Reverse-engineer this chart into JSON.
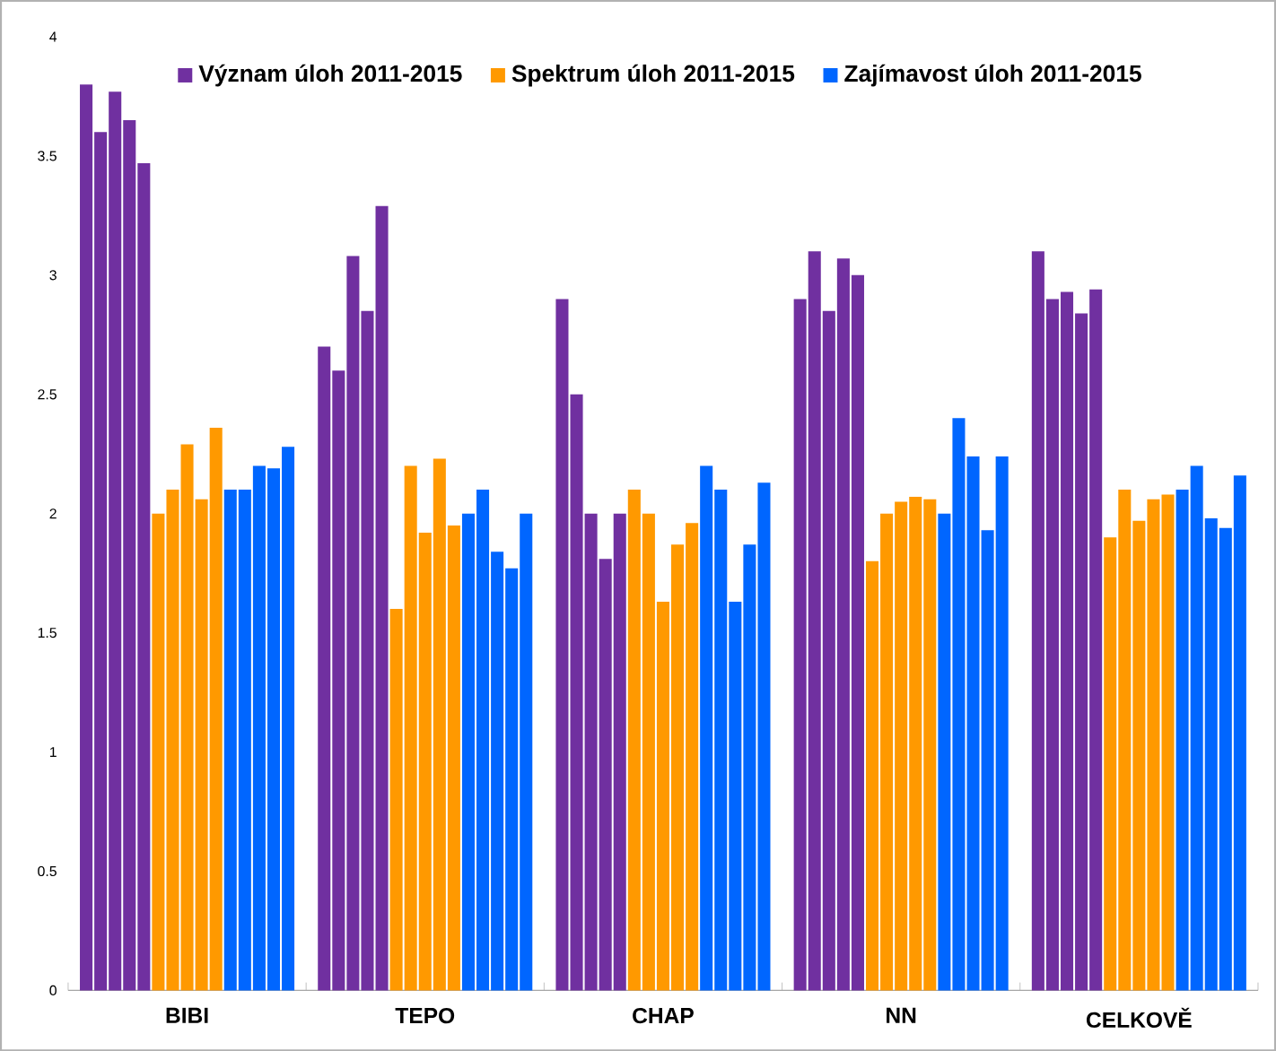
{
  "chart_data": {
    "type": "bar",
    "categories": [
      "BIBI",
      "TEPO",
      "CHAP",
      "NN",
      "CELKOVĚ"
    ],
    "ylim": [
      0,
      4
    ],
    "yticks": [
      0,
      0.5,
      1,
      1.5,
      2,
      2.5,
      3,
      3.5,
      4
    ],
    "legend": "top",
    "series": [
      {
        "name": "Význam úloh 2011-2015",
        "color": "#7030a0",
        "values": [
          3.8,
          2.7,
          2.9,
          2.9,
          3.1
        ]
      },
      {
        "color": "#7030a0",
        "values": [
          3.6,
          2.6,
          2.5,
          3.1,
          2.9
        ]
      },
      {
        "color": "#7030a0",
        "values": [
          3.77,
          3.08,
          2.0,
          2.85,
          2.93
        ]
      },
      {
        "color": "#7030a0",
        "values": [
          3.65,
          2.85,
          1.81,
          3.07,
          2.84
        ]
      },
      {
        "color": "#7030a0",
        "values": [
          3.47,
          3.29,
          2.0,
          3.0,
          2.94
        ]
      },
      {
        "name": "Spektrum úloh 2011-2015",
        "color": "#ff9900",
        "values": [
          2.0,
          1.6,
          2.1,
          1.8,
          1.9
        ]
      },
      {
        "color": "#ff9900",
        "values": [
          2.1,
          2.2,
          2.0,
          2.0,
          2.1
        ]
      },
      {
        "color": "#ff9900",
        "values": [
          2.29,
          1.92,
          1.63,
          2.05,
          1.97
        ]
      },
      {
        "color": "#ff9900",
        "values": [
          2.06,
          2.23,
          1.87,
          2.07,
          2.06
        ]
      },
      {
        "color": "#ff9900",
        "values": [
          2.36,
          1.95,
          1.96,
          2.06,
          2.08
        ]
      },
      {
        "name": "Zajímavost úloh 2011-2015",
        "color": "#0066ff",
        "values": [
          2.1,
          2.0,
          2.2,
          2.0,
          2.1
        ]
      },
      {
        "color": "#0066ff",
        "values": [
          2.1,
          2.1,
          2.1,
          2.4,
          2.2
        ]
      },
      {
        "color": "#0066ff",
        "values": [
          2.2,
          1.84,
          1.63,
          2.24,
          1.98
        ]
      },
      {
        "color": "#0066ff",
        "values": [
          2.19,
          1.77,
          1.87,
          1.93,
          1.94
        ]
      },
      {
        "color": "#0066ff",
        "values": [
          2.28,
          2.0,
          2.13,
          2.24,
          2.16
        ]
      }
    ]
  }
}
